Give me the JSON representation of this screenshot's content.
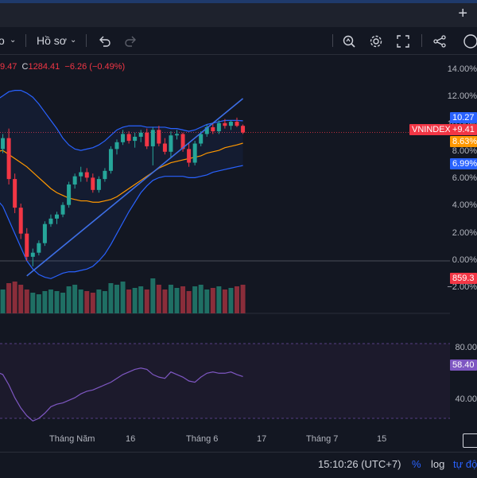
{
  "toolbar": {
    "partial_left": "o",
    "profile_label": "Hồ sơ",
    "plus_label": "+"
  },
  "legend": {
    "partial_open": "9.47",
    "close_label": "C",
    "close_value": "1284.41",
    "change": "−6.26 (−0.49%)"
  },
  "price_axis": [
    "14.00%",
    "12.00%",
    "10.00%",
    "8.00%",
    "6.00%",
    "4.00%",
    "2.00%",
    "0.00%",
    "−2.00%"
  ],
  "badges": {
    "upper_band": "10.27",
    "symbol": "VNINDEX",
    "symbol_change": "+9.41",
    "ma": "8.63%",
    "lower_band": "6.99%",
    "volume": "859.3"
  },
  "rsi_axis": [
    "80.00",
    "40.00"
  ],
  "rsi_badge": "58.40",
  "date_axis": [
    "Tháng Năm",
    "16",
    "Tháng 6",
    "17",
    "Tháng 7",
    "15"
  ],
  "status_bar": {
    "time": "15:10:26 (UTC+7)",
    "percent": "%",
    "log": "log",
    "auto": "tự độ"
  },
  "colors": {
    "up": "#26a69a",
    "down": "#f23645",
    "band": "#2962ff",
    "ma": "#ff9800",
    "trend": "#3d6fe6",
    "rsi": "#7e57c2",
    "volume_up": "#1f6f64",
    "volume_down": "#8a2d3a"
  },
  "chart_data": {
    "type": "candlestick",
    "price_unit": "percent",
    "candles": [
      [
        7.4,
        8.6,
        6.8,
        8.2
      ],
      [
        8.2,
        9.3,
        7.9,
        9.0
      ],
      [
        9.0,
        9.7,
        5.6,
        6.0
      ],
      [
        6.0,
        6.4,
        3.5,
        3.9
      ],
      [
        3.9,
        4.2,
        1.6,
        2.0
      ],
      [
        2.0,
        2.4,
        0.0,
        0.3
      ],
      [
        0.3,
        0.9,
        -0.4,
        0.6
      ],
      [
        0.6,
        1.5,
        0.4,
        1.3
      ],
      [
        1.3,
        2.9,
        1.1,
        2.7
      ],
      [
        2.7,
        3.4,
        2.5,
        3.1
      ],
      [
        3.1,
        3.6,
        2.7,
        3.4
      ],
      [
        3.4,
        4.3,
        3.2,
        4.1
      ],
      [
        4.1,
        5.8,
        3.9,
        5.6
      ],
      [
        5.6,
        6.4,
        5.3,
        6.2
      ],
      [
        6.2,
        6.9,
        5.8,
        6.5
      ],
      [
        6.5,
        6.8,
        5.8,
        6.1
      ],
      [
        6.1,
        6.4,
        5.0,
        5.2
      ],
      [
        5.2,
        6.2,
        5.0,
        6.0
      ],
      [
        6.0,
        6.8,
        5.8,
        6.6
      ],
      [
        6.6,
        8.4,
        6.4,
        8.2
      ],
      [
        8.2,
        8.9,
        7.8,
        8.7
      ],
      [
        8.7,
        9.6,
        8.5,
        9.3
      ],
      [
        9.3,
        9.5,
        8.6,
        8.8
      ],
      [
        8.8,
        9.4,
        8.3,
        9.1
      ],
      [
        9.1,
        9.6,
        8.7,
        9.4
      ],
      [
        9.4,
        9.7,
        8.2,
        8.4
      ],
      [
        8.4,
        9.8,
        7.0,
        9.6
      ],
      [
        9.6,
        9.9,
        8.4,
        8.6
      ],
      [
        8.6,
        9.0,
        7.8,
        8.0
      ],
      [
        8.0,
        9.5,
        7.6,
        9.2
      ],
      [
        9.2,
        9.6,
        8.9,
        9.3
      ],
      [
        9.3,
        9.4,
        8.0,
        8.2
      ],
      [
        8.2,
        8.6,
        6.9,
        7.2
      ],
      [
        7.2,
        8.8,
        7.0,
        8.6
      ],
      [
        8.6,
        9.5,
        8.4,
        9.3
      ],
      [
        9.3,
        10.0,
        9.1,
        9.8
      ],
      [
        9.8,
        10.1,
        9.3,
        9.5
      ],
      [
        9.5,
        10.3,
        9.3,
        10.1
      ],
      [
        10.1,
        10.4,
        9.7,
        9.9
      ],
      [
        9.9,
        10.3,
        9.6,
        10.2
      ],
      [
        10.2,
        10.5,
        9.8,
        9.9
      ],
      [
        9.9,
        10.0,
        9.3,
        9.41
      ]
    ],
    "upper_band": [
      11.8,
      12.1,
      12.4,
      12.5,
      12.5,
      12.3,
      12.0,
      11.5,
      10.9,
      10.3,
      9.7,
      9.0,
      8.5,
      8.2,
      8.1,
      8.2,
      8.3,
      8.5,
      8.8,
      9.2,
      9.6,
      9.8,
      9.9,
      9.9,
      9.9,
      9.8,
      9.8,
      9.8,
      9.8,
      9.7,
      9.7,
      9.6,
      9.5,
      9.6,
      9.8,
      10.0,
      10.1,
      10.2,
      10.3,
      10.3,
      10.3,
      10.27
    ],
    "lower_band": [
      4.5,
      4.0,
      3.0,
      2.0,
      1.0,
      0.0,
      -0.6,
      -1.0,
      -1.2,
      -1.3,
      -1.1,
      -0.9,
      -0.8,
      -0.8,
      -0.7,
      -0.6,
      -0.4,
      0.0,
      0.5,
      1.2,
      2.0,
      2.8,
      3.6,
      4.3,
      5.0,
      5.5,
      5.9,
      6.1,
      6.2,
      6.2,
      6.2,
      6.2,
      6.1,
      6.1,
      6.2,
      6.3,
      6.5,
      6.6,
      6.7,
      6.8,
      6.9,
      6.99
    ],
    "ma": [
      8.0,
      8.1,
      7.8,
      7.5,
      7.2,
      6.9,
      6.5,
      6.1,
      5.7,
      5.3,
      5.0,
      4.8,
      4.6,
      4.5,
      4.4,
      4.4,
      4.3,
      4.3,
      4.4,
      4.5,
      4.7,
      5.0,
      5.3,
      5.6,
      5.9,
      6.2,
      6.5,
      6.8,
      7.0,
      7.2,
      7.3,
      7.4,
      7.5,
      7.6,
      7.7,
      7.9,
      8.0,
      8.1,
      8.3,
      8.4,
      8.5,
      8.63
    ],
    "trendline": [
      [
        5,
        -1.1
      ],
      [
        41,
        11.9
      ]
    ],
    "rsi": [
      62,
      60,
      52,
      42,
      34,
      28,
      24,
      26,
      30,
      35,
      37,
      38,
      40,
      42,
      45,
      47,
      48,
      50,
      52,
      54,
      57,
      60,
      62,
      64,
      65,
      64,
      60,
      58,
      57,
      62,
      60,
      58,
      55,
      54,
      58,
      61,
      62,
      61,
      61,
      62,
      60,
      58.4
    ],
    "rsi_ylim": [
      26,
      84
    ],
    "ylim": [
      -2.9,
      14.6
    ],
    "ylabel": "",
    "xlabel": ""
  }
}
